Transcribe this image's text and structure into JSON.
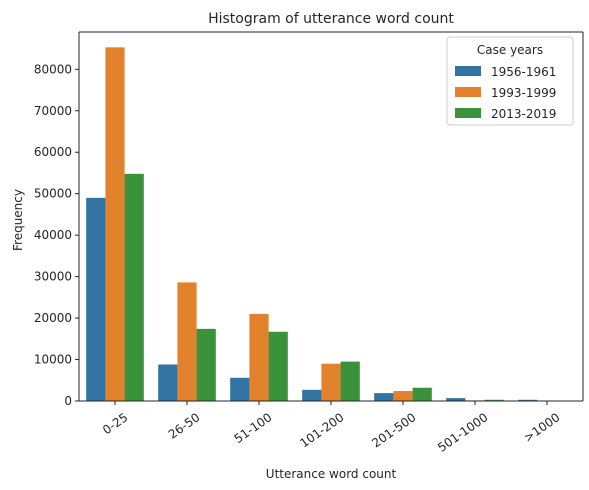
{
  "chart_data": {
    "type": "bar",
    "title": "Histogram of utterance word count",
    "xlabel": "Utterance word count",
    "ylabel": "Frequency",
    "categories": [
      "0-25",
      "26-50",
      "51-100",
      "101-200",
      "201-500",
      "501-1000",
      ">1000"
    ],
    "ylim": [
      0,
      89000
    ],
    "yticks": [
      0,
      10000,
      20000,
      30000,
      40000,
      50000,
      60000,
      70000,
      80000
    ],
    "grid": false,
    "legend": {
      "title": "Case years",
      "placement": "top-right"
    },
    "series": [
      {
        "name": "1956-1961",
        "color": "#3274a1",
        "values": [
          49000,
          8800,
          5600,
          2700,
          1900,
          700,
          300
        ]
      },
      {
        "name": "1993-1999",
        "color": "#e1812c",
        "values": [
          85300,
          28600,
          21000,
          9000,
          2400,
          150,
          30
        ]
      },
      {
        "name": "2013-2019",
        "color": "#3a923a",
        "values": [
          54800,
          17400,
          16700,
          9500,
          3200,
          300,
          40
        ]
      }
    ]
  }
}
